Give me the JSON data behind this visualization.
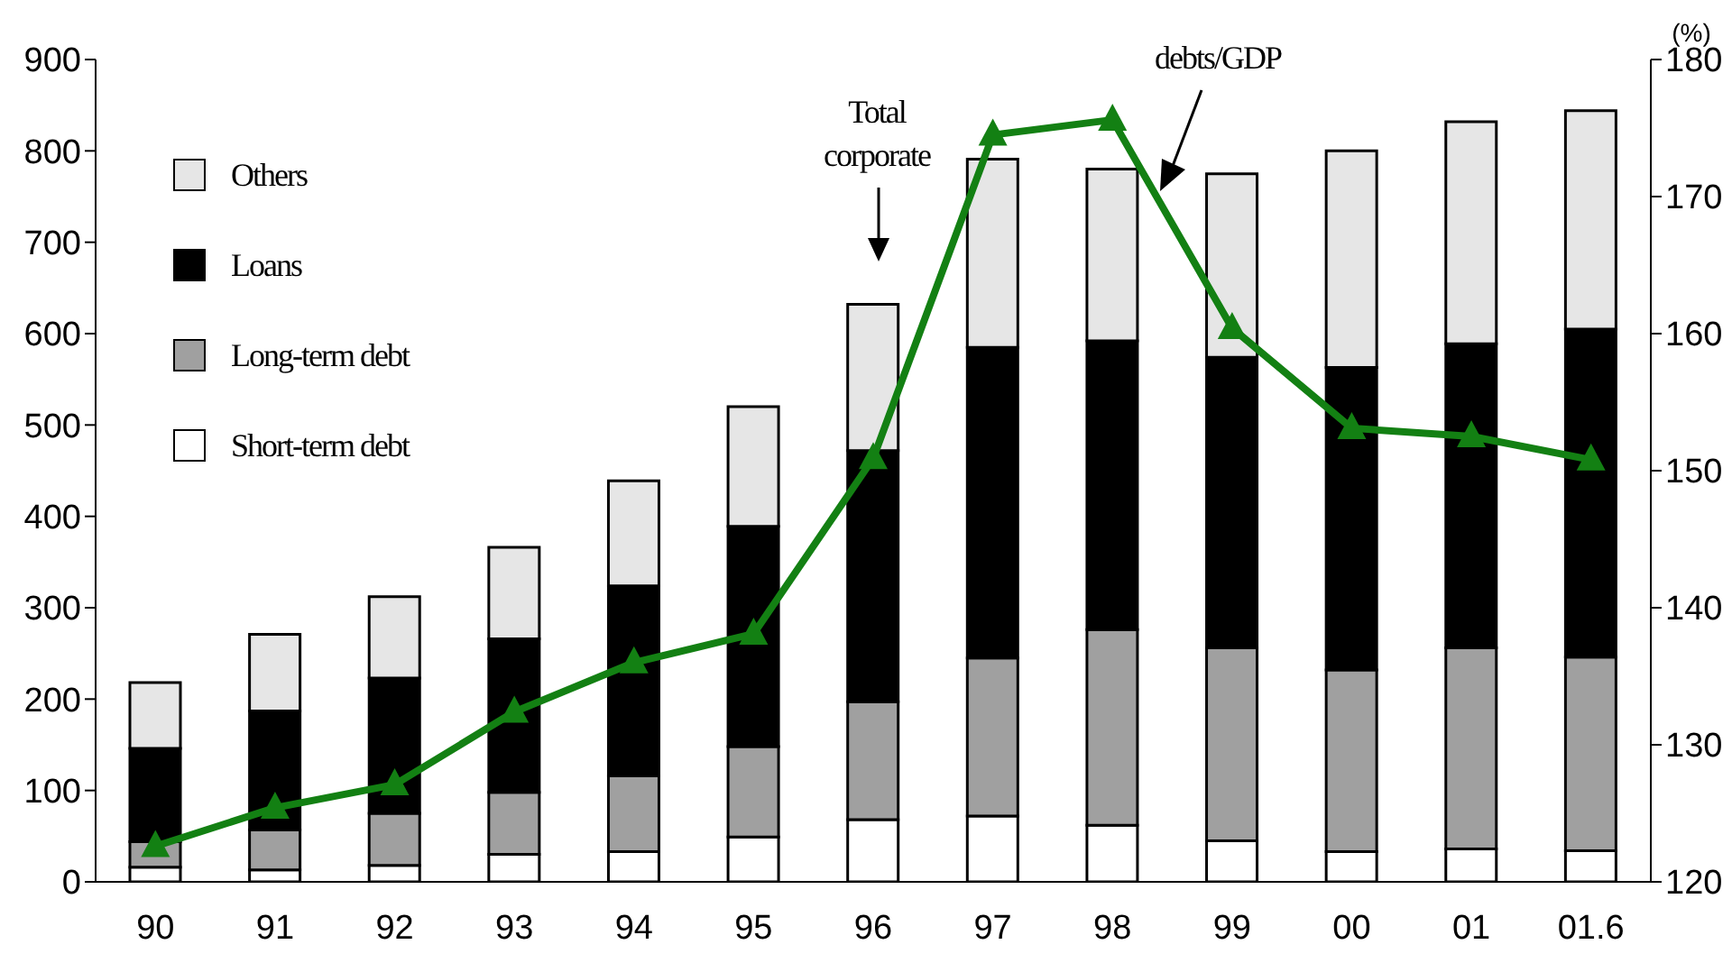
{
  "chart_data": {
    "type": "bar",
    "stacked": true,
    "categories": [
      "90",
      "91",
      "92",
      "93",
      "94",
      "95",
      "96",
      "97",
      "98",
      "99",
      "00",
      "01",
      "01.6"
    ],
    "series": [
      {
        "name": "Short-term debt",
        "color": "#ffffff",
        "values": [
          16,
          13,
          18,
          30,
          33,
          49,
          68,
          72,
          62,
          45,
          33,
          36,
          34
        ]
      },
      {
        "name": "Long-term debt",
        "color": "#a0a0a0",
        "values": [
          28,
          44,
          57,
          68,
          83,
          99,
          129,
          173,
          214,
          211,
          199,
          220,
          212
        ]
      },
      {
        "name": "Loans",
        "color": "#000000",
        "values": [
          102,
          130,
          148,
          168,
          208,
          241,
          275,
          340,
          316,
          318,
          331,
          333,
          359
        ]
      },
      {
        "name": "Others",
        "color": "#e6e6e6",
        "values": [
          72,
          84,
          89,
          100,
          115,
          131,
          160,
          206,
          188,
          201,
          237,
          243,
          239
        ]
      },
      {
        "name": "debts/GDP",
        "type": "line",
        "axis": "y2",
        "color": "#138013",
        "marker": "triangle",
        "values": [
          122.6,
          125.4,
          127.1,
          132.4,
          136.0,
          138.1,
          150.9,
          174.5,
          175.6,
          160.4,
          153.1,
          152.5,
          150.8
        ]
      }
    ],
    "ylim": [
      0,
      900
    ],
    "yticks": [
      0,
      100,
      200,
      300,
      400,
      500,
      600,
      700,
      800,
      900
    ],
    "y2lim": [
      120,
      180
    ],
    "y2ticks": [
      120,
      130,
      140,
      150,
      160,
      170,
      180
    ],
    "y2label": "(%)",
    "annotations": [
      "Total corporate"
    ],
    "legend": "top left",
    "grid": false
  }
}
